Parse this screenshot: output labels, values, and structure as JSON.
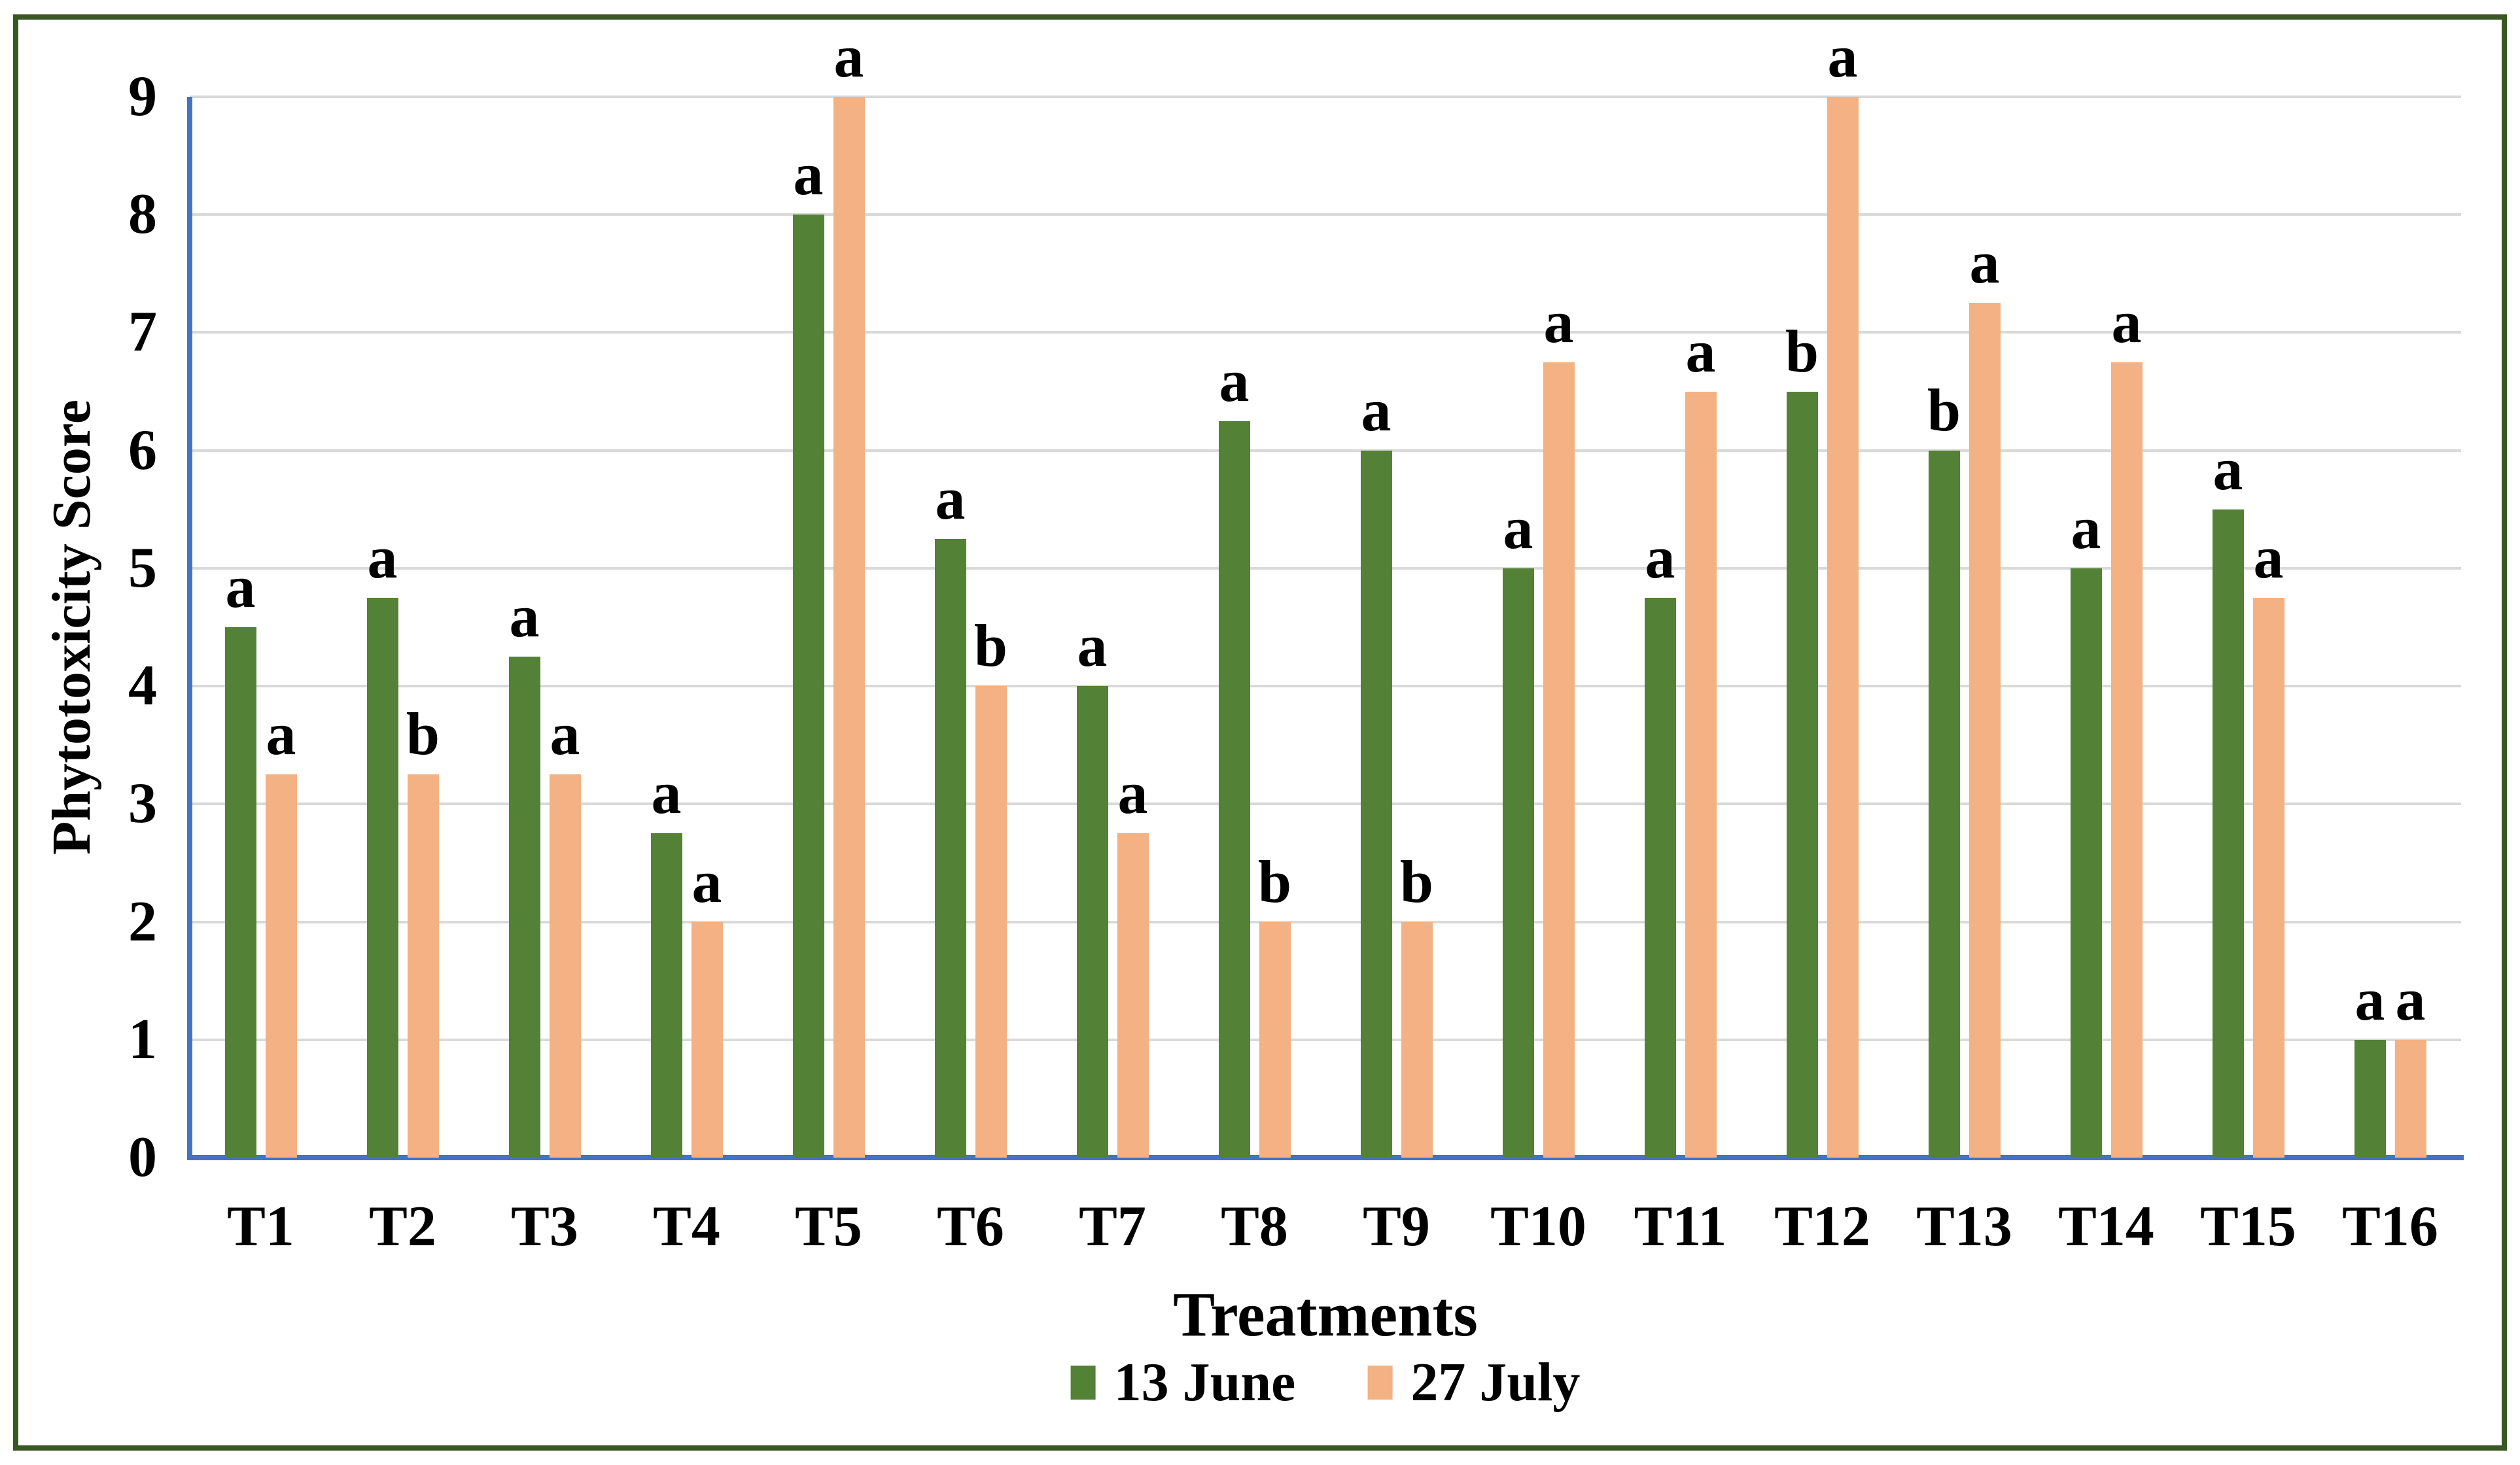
{
  "figure": {
    "background": "#ffffff",
    "border_color": "#385723"
  },
  "chart_data": {
    "type": "bar",
    "title": "",
    "xlabel": "Treatments",
    "ylabel": "Phytotoxicity Score",
    "ylim": [
      0,
      9
    ],
    "yticks": [
      0,
      1,
      2,
      3,
      4,
      5,
      6,
      7,
      8,
      9
    ],
    "grid": "horizontal",
    "gridline_color": "#D9D9D9",
    "axis_color": "#4472C4",
    "legend_position": "bottom",
    "categories": [
      "T1",
      "T2",
      "T3",
      "T4",
      "T5",
      "T6",
      "T7",
      "T8",
      "T9",
      "T10",
      "T11",
      "T12",
      "T13",
      "T14",
      "T15",
      "T16"
    ],
    "series": [
      {
        "name": "13 June",
        "color": "#538135",
        "values": [
          4.5,
          4.75,
          4.25,
          2.75,
          8.0,
          5.25,
          4.0,
          6.25,
          6.0,
          5.0,
          4.75,
          6.5,
          6.0,
          5.0,
          5.5,
          1.0
        ],
        "letters": [
          "a",
          "a",
          "a",
          "a",
          "a",
          "a",
          "a",
          "a",
          "a",
          "a",
          "a",
          "b",
          "b",
          "a",
          "a",
          "a"
        ]
      },
      {
        "name": "27 July",
        "color": "#F4B183",
        "values": [
          3.25,
          3.25,
          3.25,
          2.0,
          9.0,
          4.0,
          2.75,
          2.0,
          2.0,
          6.75,
          6.5,
          9.0,
          7.25,
          6.75,
          4.75,
          1.0
        ],
        "letters": [
          "a",
          "b",
          "a",
          "a",
          "a",
          "b",
          "a",
          "b",
          "b",
          "a",
          "a",
          "a",
          "a",
          "a",
          "a",
          "a"
        ]
      }
    ]
  },
  "legend": {
    "items": [
      {
        "label": "13 June",
        "color": "#538135"
      },
      {
        "label": "27 July",
        "color": "#F4B183"
      }
    ]
  }
}
